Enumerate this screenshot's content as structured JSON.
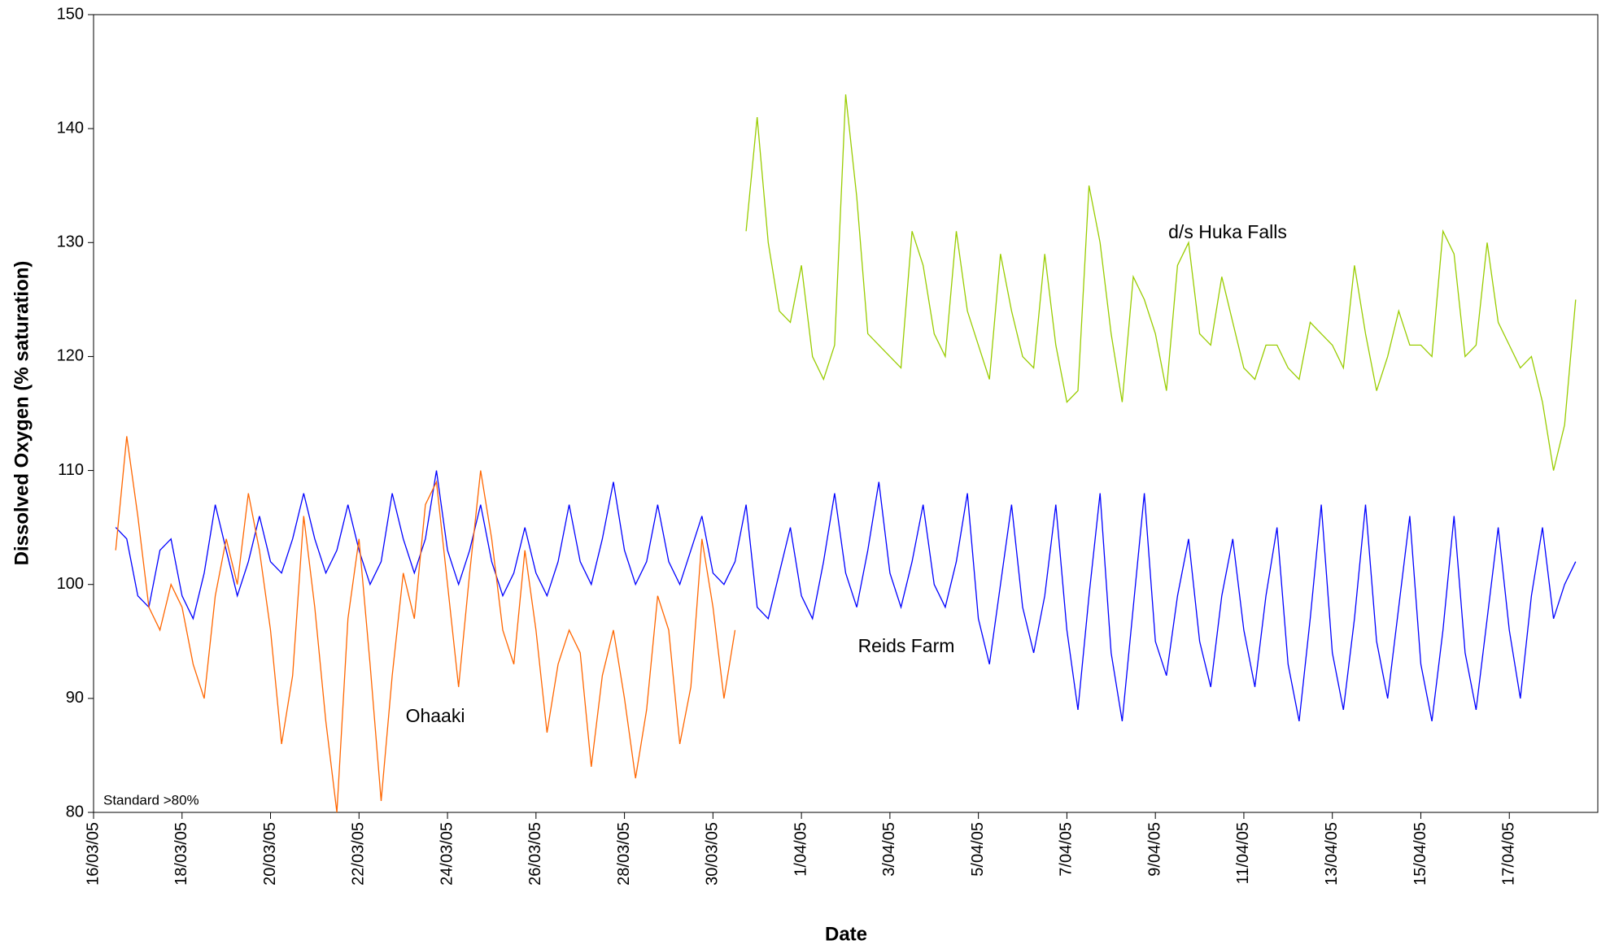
{
  "chart_data": {
    "type": "line",
    "x_label": "Date",
    "y_label": "Dissolved Oxygen (% saturation)",
    "annotation": "Standard >80%",
    "xlim": [
      0,
      34
    ],
    "xticks": [
      {
        "value": 0,
        "label": "16/03/05"
      },
      {
        "value": 2,
        "label": "18/03/05"
      },
      {
        "value": 4,
        "label": "20/03/05"
      },
      {
        "value": 6,
        "label": "22/03/05"
      },
      {
        "value": 8,
        "label": "24/03/05"
      },
      {
        "value": 10,
        "label": "26/03/05"
      },
      {
        "value": 12,
        "label": "28/03/05"
      },
      {
        "value": 14,
        "label": "30/03/05"
      },
      {
        "value": 16,
        "label": "1/04/05"
      },
      {
        "value": 18,
        "label": "3/04/05"
      },
      {
        "value": 20,
        "label": "5/04/05"
      },
      {
        "value": 22,
        "label": "7/04/05"
      },
      {
        "value": 24,
        "label": "9/04/05"
      },
      {
        "value": 26,
        "label": "11/04/05"
      },
      {
        "value": 28,
        "label": "13/04/05"
      },
      {
        "value": 30,
        "label": "15/04/05"
      },
      {
        "value": 32,
        "label": "17/04/05"
      }
    ],
    "ylim": [
      80,
      150
    ],
    "yticks": [
      80,
      90,
      100,
      110,
      120,
      130,
      140,
      150
    ],
    "series": [
      {
        "name": "Reids Farm",
        "color": "#0000ff",
        "x": [
          0.5,
          0.75,
          1,
          1.25,
          1.5,
          1.75,
          2,
          2.25,
          2.5,
          2.75,
          3,
          3.25,
          3.5,
          3.75,
          4,
          4.25,
          4.5,
          4.75,
          5,
          5.25,
          5.5,
          5.75,
          6,
          6.25,
          6.5,
          6.75,
          7,
          7.25,
          7.5,
          7.75,
          8,
          8.25,
          8.5,
          8.75,
          9,
          9.25,
          9.5,
          9.75,
          10,
          10.25,
          10.5,
          10.75,
          11,
          11.25,
          11.5,
          11.75,
          12,
          12.25,
          12.5,
          12.75,
          13,
          13.25,
          13.5,
          13.75,
          14,
          14.25,
          14.5,
          14.75,
          15,
          15.25,
          15.5,
          15.75,
          16,
          16.25,
          16.5,
          16.75,
          17,
          17.25,
          17.5,
          17.75,
          18,
          18.25,
          18.5,
          18.75,
          19,
          19.25,
          19.5,
          19.75,
          20,
          20.25,
          20.5,
          20.75,
          21,
          21.25,
          21.5,
          21.75,
          22,
          22.25,
          22.5,
          22.75,
          23,
          23.25,
          23.5,
          23.75,
          24,
          24.25,
          24.5,
          24.75,
          25,
          25.25,
          25.5,
          25.75,
          26,
          26.25,
          26.5,
          26.75,
          27,
          27.25,
          27.5,
          27.75,
          28,
          28.25,
          28.5,
          28.75,
          29,
          29.25,
          29.5,
          29.75,
          30,
          30.25,
          30.5,
          30.75,
          31,
          31.25,
          31.5,
          31.75,
          32,
          32.25,
          32.5,
          32.75,
          33,
          33.25,
          33.5
        ],
        "values": [
          105,
          104,
          99,
          98,
          103,
          104,
          99,
          97,
          101,
          107,
          103,
          99,
          102,
          106,
          102,
          101,
          104,
          108,
          104,
          101,
          103,
          107,
          103,
          100,
          102,
          108,
          104,
          101,
          104,
          110,
          103,
          100,
          103,
          107,
          102,
          99,
          101,
          105,
          101,
          99,
          102,
          107,
          102,
          100,
          104,
          109,
          103,
          100,
          102,
          107,
          102,
          100,
          103,
          106,
          101,
          100,
          102,
          107,
          98,
          97,
          101,
          105,
          99,
          97,
          102,
          108,
          101,
          98,
          103,
          109,
          101,
          98,
          102,
          107,
          100,
          98,
          102,
          108,
          97,
          93,
          100,
          107,
          98,
          94,
          99,
          107,
          96,
          89,
          99,
          108,
          94,
          88,
          98,
          108,
          95,
          92,
          99,
          104,
          95,
          91,
          99,
          104,
          96,
          91,
          99,
          105,
          93,
          88,
          97,
          107,
          94,
          89,
          97,
          107,
          95,
          90,
          98,
          106,
          93,
          88,
          96,
          106,
          94,
          89,
          97,
          105,
          96,
          90,
          99,
          105,
          97,
          100,
          102
        ]
      },
      {
        "name": "Ohaaki",
        "color": "#ff6600",
        "x": [
          0.5,
          0.75,
          1,
          1.25,
          1.5,
          1.75,
          2,
          2.25,
          2.5,
          2.75,
          3,
          3.25,
          3.5,
          3.75,
          4,
          4.25,
          4.5,
          4.75,
          5,
          5.25,
          5.5,
          5.75,
          6,
          6.25,
          6.5,
          6.75,
          7,
          7.25,
          7.5,
          7.75,
          8,
          8.25,
          8.5,
          8.75,
          9,
          9.25,
          9.5,
          9.75,
          10,
          10.25,
          10.5,
          10.75,
          11,
          11.25,
          11.5,
          11.75,
          12,
          12.25,
          12.5,
          12.75,
          13,
          13.25,
          13.5,
          13.75,
          14,
          14.25,
          14.5
        ],
        "values": [
          103,
          113,
          106,
          98,
          96,
          100,
          98,
          93,
          90,
          99,
          104,
          100,
          108,
          103,
          96,
          86,
          92,
          106,
          98,
          88,
          80,
          97,
          104,
          93,
          81,
          92,
          101,
          97,
          107,
          109,
          100,
          91,
          101,
          110,
          104,
          96,
          93,
          103,
          96,
          87,
          93,
          96,
          94,
          84,
          92,
          96,
          90,
          83,
          89,
          99,
          96,
          86,
          91,
          104,
          98,
          90,
          96
        ]
      },
      {
        "name": "d/s Huka Falls",
        "color": "#99cc00",
        "x": [
          14.75,
          15,
          15.25,
          15.5,
          15.75,
          16,
          16.25,
          16.5,
          16.75,
          17,
          17.25,
          17.5,
          17.75,
          18,
          18.25,
          18.5,
          18.75,
          19,
          19.25,
          19.5,
          19.75,
          20,
          20.25,
          20.5,
          20.75,
          21,
          21.25,
          21.5,
          21.75,
          22,
          22.25,
          22.5,
          22.75,
          23,
          23.25,
          23.5,
          23.75,
          24,
          24.25,
          24.5,
          24.75,
          25,
          25.25,
          25.5,
          25.75,
          26,
          26.25,
          26.5,
          26.75,
          27,
          27.25,
          27.5,
          27.75,
          28,
          28.25,
          28.5,
          28.75,
          29,
          29.25,
          29.5,
          29.75,
          30,
          30.25,
          30.5,
          30.75,
          31,
          31.25,
          31.5,
          31.75,
          32,
          32.25,
          32.5,
          32.75,
          33,
          33.25,
          33.5
        ],
        "values": [
          131,
          141,
          130,
          124,
          123,
          128,
          120,
          118,
          121,
          143,
          134,
          122,
          121,
          120,
          119,
          131,
          128,
          122,
          120,
          131,
          124,
          121,
          118,
          129,
          124,
          120,
          119,
          129,
          121,
          116,
          117,
          135,
          130,
          122,
          116,
          127,
          125,
          122,
          117,
          128,
          130,
          122,
          121,
          127,
          123,
          119,
          118,
          121,
          121,
          119,
          118,
          123,
          122,
          121,
          119,
          128,
          122,
          117,
          120,
          124,
          121,
          121,
          120,
          131,
          129,
          120,
          121,
          130,
          123,
          121,
          119,
          120,
          116,
          110,
          114,
          125
        ]
      }
    ]
  }
}
